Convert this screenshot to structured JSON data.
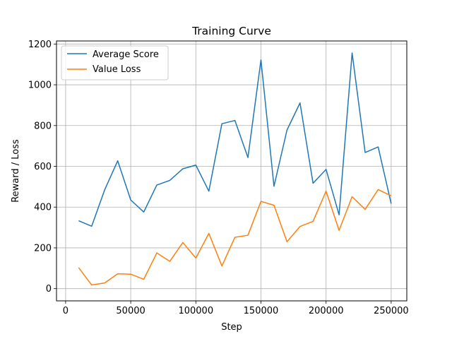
{
  "chart_data": {
    "type": "line",
    "title": "Training Curve",
    "xlabel": "Step",
    "ylabel": "Reward / Loss",
    "xlim": [
      -7000,
      262000
    ],
    "ylim": [
      -60,
      1215
    ],
    "xticks": [
      0,
      50000,
      100000,
      150000,
      200000,
      250000
    ],
    "xtick_labels": [
      "0",
      "50000",
      "100000",
      "150000",
      "200000",
      "250000"
    ],
    "yticks": [
      0,
      200,
      400,
      600,
      800,
      1000,
      1200
    ],
    "ytick_labels": [
      "0",
      "200",
      "400",
      "600",
      "800",
      "1000",
      "1200"
    ],
    "grid": true,
    "legend_position": "top-left",
    "x": [
      10000,
      20000,
      30000,
      40000,
      50000,
      60000,
      70000,
      80000,
      90000,
      100000,
      110000,
      120000,
      130000,
      140000,
      150000,
      160000,
      170000,
      180000,
      190000,
      200000,
      210000,
      220000,
      230000,
      240000,
      250000
    ],
    "series": [
      {
        "name": "Average Score",
        "color": "#1f77b4",
        "values": [
          333,
          306,
          485,
          627,
          435,
          376,
          508,
          531,
          588,
          606,
          478,
          809,
          825,
          643,
          1122,
          502,
          778,
          911,
          517,
          585,
          362,
          1156,
          668,
          695,
          417
        ]
      },
      {
        "name": "Value Loss",
        "color": "#ff7f0e",
        "values": [
          103,
          18,
          28,
          73,
          71,
          46,
          175,
          134,
          226,
          150,
          271,
          111,
          252,
          262,
          428,
          409,
          230,
          305,
          330,
          478,
          286,
          451,
          389,
          486,
          455
        ]
      }
    ]
  }
}
